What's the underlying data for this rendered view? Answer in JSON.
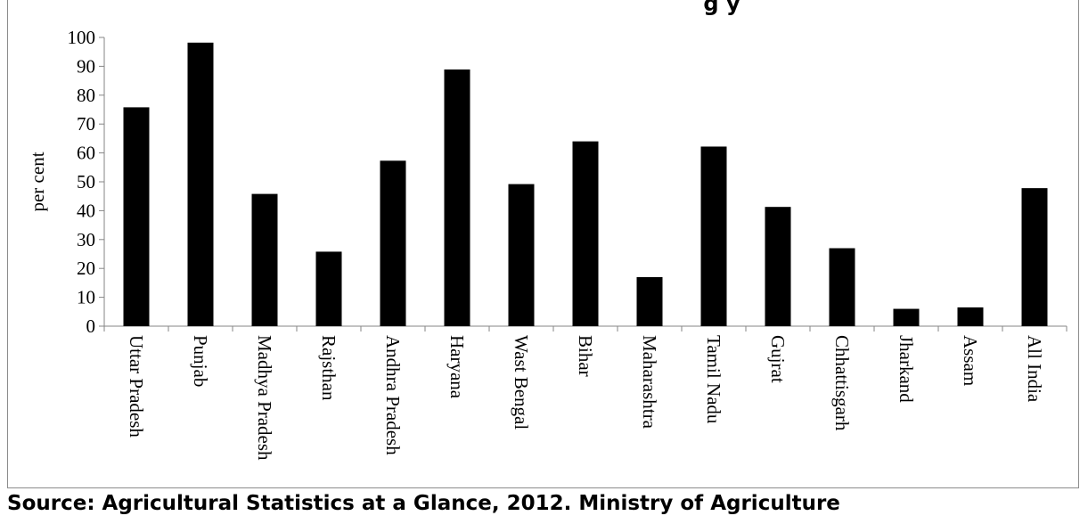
{
  "chart_data": {
    "type": "bar",
    "title": "g y",
    "xlabel": "",
    "ylabel": "per cent",
    "ylim": [
      0,
      100
    ],
    "yticks": [
      0,
      10,
      20,
      30,
      40,
      50,
      60,
      70,
      80,
      90,
      100
    ],
    "grid": false,
    "legend": "none",
    "bar_color": "#000000",
    "categories": [
      "Uttar Pradesh",
      "Punjab",
      "Madhya Pradesh",
      "Rajsthan",
      "Andhra Pradesh",
      "Haryana",
      "Wast Bengal",
      "Bihar",
      "Maharashtra",
      "Tamil Nadu",
      "Gujrat",
      "Chhattisgarh",
      "Jharkand",
      "Assam",
      "All India"
    ],
    "values": [
      75.8,
      98.2,
      45.8,
      25.8,
      57.3,
      88.9,
      49.2,
      64.0,
      17.0,
      62.2,
      41.3,
      27.0,
      6.0,
      6.5,
      47.8
    ]
  },
  "footer": {
    "source": "Source: Agricultural Statistics at a Glance, 2012.  Ministry of Agriculture"
  }
}
